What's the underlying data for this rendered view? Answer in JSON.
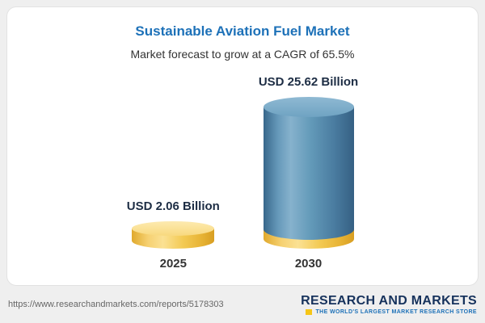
{
  "chart_data": {
    "type": "bar",
    "title": "Sustainable Aviation Fuel Market",
    "subtitle": "Market forecast to grow at a CAGR of 65.5%",
    "categories": [
      "2025",
      "2030"
    ],
    "values": [
      2.06,
      25.62
    ],
    "unit": "USD Billion",
    "value_labels": [
      "USD 2.06 Billion",
      "USD 25.62 Billion"
    ],
    "cagr_percent": 65.5,
    "legend_position": "none",
    "grid": false,
    "colors": {
      "title": "#1d71b8",
      "bar_2025": "#f3ca54",
      "bar_2030": "#5d92b4",
      "bar_2030_base": "#f3ca54"
    }
  },
  "footer": {
    "url": "https://www.researchandmarkets.com/reports/5178303",
    "logo_line1": "RESEARCH AND MARKETS",
    "logo_tagline": "THE WORLD'S LARGEST MARKET RESEARCH STORE"
  }
}
